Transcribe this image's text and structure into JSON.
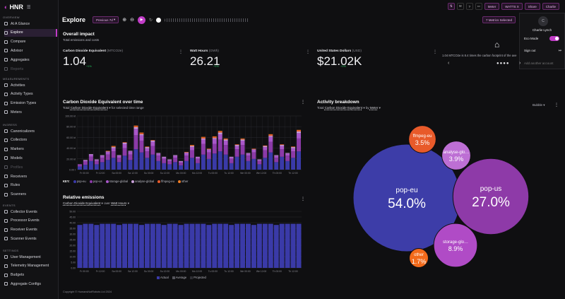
{
  "app": {
    "logo": "HNR"
  },
  "sidebar": {
    "sections": {
      "overview": "OVERVIEW",
      "measurements": "MEASUREMENTS",
      "ingress": "INGRESS",
      "events": "EVENTS",
      "settings": "SETTINGS"
    },
    "overview": [
      {
        "label": "At A Glance"
      },
      {
        "label": "Explore"
      },
      {
        "label": "Compare"
      },
      {
        "label": "Advisor"
      },
      {
        "label": "Aggregates"
      },
      {
        "label": "Reports"
      }
    ],
    "measurements": [
      {
        "label": "Activities"
      },
      {
        "label": "Activity Types"
      },
      {
        "label": "Emission Types"
      },
      {
        "label": "Meters"
      }
    ],
    "ingress": [
      {
        "label": "Canonicalizers"
      },
      {
        "label": "Collectors"
      },
      {
        "label": "Markers"
      },
      {
        "label": "Models"
      },
      {
        "label": "Profiles"
      },
      {
        "label": "Receivers"
      },
      {
        "label": "Rules"
      },
      {
        "label": "Scanners"
      }
    ],
    "events": [
      {
        "label": "Collector Events"
      },
      {
        "label": "Processor Events"
      },
      {
        "label": "Receiver Events"
      },
      {
        "label": "Scanner Events"
      }
    ],
    "settings": [
      {
        "label": "User Management"
      },
      {
        "label": "Telemetry Management"
      },
      {
        "label": "Budgets"
      },
      {
        "label": "Aggregate Configs"
      }
    ]
  },
  "topbar": {
    "meter": "Meter",
    "wattsx": "WATTS X",
    "share": "Share",
    "user": "Charlie"
  },
  "toolbar": {
    "title": "Explore",
    "range": "Previous 7d",
    "play_icon": "▶",
    "metrics_button": "7 Metrics Selected"
  },
  "user_menu": {
    "name": "Charlie Lynch",
    "avatar": "C",
    "eco_mode": "Eco Mode",
    "sign_out": "Sign out",
    "add_account": "Add another account"
  },
  "overall": {
    "title": "Overall impact",
    "subtitle": "Total emissions and costs",
    "kpis": [
      {
        "label": "Carbon Dioxide Equivalent",
        "unit": "(MTCO2e)",
        "value": "1.04",
        "delta": "+1%"
      },
      {
        "label": "Watt Hours",
        "unit": "(GWh)",
        "value": "26.21",
        "delta": "+1%"
      },
      {
        "label": "United States Dollars",
        "unit": "(USD)",
        "value": "$21.02K",
        "delta": "+1%"
      }
    ],
    "insight": "1.04 MTCO2e is 8.4 times the carbon footprint of the ave"
  },
  "co2_chart": {
    "title": "Carbon Dioxide Equivalent over time",
    "sub_prefix": "Total",
    "sub_metric": "Carbon Dioxide Equivalent",
    "sub_suffix": "for selected time range",
    "key_label": "KEY:",
    "y_ticks": [
      "0.00 t",
      "20.00 kt",
      "40.00 kt",
      "60.00 kt",
      "80.00 kt",
      "100.00 kt"
    ],
    "x_ticks": [
      "Fr 00:00",
      "Fr 12:00",
      "Sa 00:00",
      "Sa 12:00",
      "Su 00:00",
      "Su 12:00",
      "Mo 00:00",
      "Mo 12:00",
      "Tu 00:00",
      "Tu 12:00",
      "We 00:00",
      "We 12:00",
      "Th 00:00",
      "Th 12:00"
    ]
  },
  "activity": {
    "title": "Activity breakdown",
    "sub_prefix": "Total",
    "sub_metric": "Carbon Dioxide Equivalent",
    "sub_mid": "by",
    "sub_group": "Meter",
    "mode": "Bubble"
  },
  "relative": {
    "title": "Relative emissions",
    "sub_metric": "Carbon Dioxide Equivalent",
    "sub_mid": "over",
    "sub_base": "Watt Hours",
    "y_ticks": [
      "0.00",
      "5.00",
      "10.00",
      "15.00",
      "20.00",
      "25.00",
      "30.00",
      "35.00",
      "40.00",
      "45.00",
      "50.00"
    ],
    "x_ticks": [
      "Fr 00:00",
      "Fr 12:00",
      "Sa 00:00",
      "Sa 12:00",
      "Su 00:00",
      "Su 12:00",
      "Mo 00:00",
      "Mo 12:00",
      "Tu 00:00",
      "Tu 12:00",
      "We 00:00",
      "We 12:00",
      "Th 00:00",
      "Th 12:00"
    ],
    "legend": [
      "Actual",
      "Average",
      "Projected"
    ]
  },
  "footer": "Copyright © HumansNotRobots Ltd 2024",
  "chart_data": [
    {
      "type": "bar",
      "stacked": true,
      "title": "Carbon Dioxide Equivalent over time",
      "ylabel": "",
      "ylim": [
        0,
        100000
      ],
      "series": [
        {
          "name": "pop-eu",
          "color": "#3a3aa8",
          "values": [
            6,
            9,
            16,
            10,
            14,
            18,
            22,
            14,
            26,
            18,
            38,
            32,
            22,
            28,
            16,
            12,
            10,
            14,
            8,
            16,
            22,
            12,
            28,
            20,
            30,
            34,
            28,
            12,
            24,
            28,
            16,
            20,
            10,
            22,
            32,
            14,
            24,
            16,
            22,
            34
          ]
        },
        {
          "name": "pop-us",
          "color": "#8b3aa8",
          "values": [
            3,
            6,
            8,
            6,
            8,
            10,
            12,
            8,
            14,
            10,
            26,
            22,
            12,
            16,
            10,
            8,
            6,
            8,
            5,
            10,
            14,
            8,
            20,
            12,
            18,
            22,
            18,
            8,
            14,
            18,
            10,
            12,
            6,
            14,
            20,
            8,
            14,
            10,
            12,
            24
          ]
        },
        {
          "name": "storage-global",
          "color": "#a957c9",
          "values": [
            1,
            2,
            4,
            2,
            4,
            5,
            6,
            4,
            8,
            6,
            12,
            10,
            6,
            8,
            4,
            3,
            2,
            4,
            2,
            5,
            6,
            3,
            8,
            5,
            9,
            10,
            8,
            3,
            6,
            8,
            4,
            5,
            2,
            6,
            9,
            4,
            6,
            4,
            6,
            10
          ]
        },
        {
          "name": "analyse-global",
          "color": "#c8a0d8",
          "values": [
            0,
            1,
            1,
            1,
            1,
            1,
            2,
            1,
            2,
            1,
            3,
            2,
            2,
            2,
            1,
            1,
            1,
            1,
            1,
            1,
            2,
            1,
            2,
            1,
            2,
            3,
            2,
            1,
            2,
            2,
            1,
            1,
            1,
            2,
            2,
            1,
            2,
            1,
            2,
            3
          ]
        },
        {
          "name": "ffmpeg-eu",
          "color": "#e85a2a",
          "values": [
            0,
            0,
            0,
            0,
            0,
            1,
            1,
            0,
            1,
            0,
            2,
            2,
            1,
            1,
            0,
            0,
            0,
            0,
            0,
            1,
            1,
            0,
            2,
            1,
            2,
            2,
            1,
            0,
            1,
            1,
            0,
            1,
            0,
            1,
            2,
            0,
            1,
            0,
            1,
            2
          ]
        },
        {
          "name": "other",
          "color": "#f07d24",
          "values": [
            0,
            0,
            0,
            0,
            0,
            0,
            1,
            0,
            0,
            0,
            1,
            1,
            0,
            0,
            0,
            0,
            0,
            0,
            0,
            0,
            1,
            0,
            1,
            0,
            1,
            1,
            1,
            0,
            0,
            1,
            0,
            0,
            0,
            0,
            1,
            0,
            0,
            0,
            0,
            1
          ]
        }
      ]
    },
    {
      "type": "bubble",
      "title": "Activity breakdown",
      "series": [
        {
          "name": "pop-eu",
          "pct": "54.0%",
          "value": 54.0,
          "color": "#3d3da8"
        },
        {
          "name": "pop-us",
          "pct": "27.0%",
          "value": 27.0,
          "color": "#8e3aa8"
        },
        {
          "name": "ffmpeg-eu",
          "pct": "3.5%",
          "value": 3.5,
          "color": "#e85a2a"
        },
        {
          "name": "analyse-glo…",
          "pct": "3.9%",
          "value": 3.9,
          "color": "#bd6fd4"
        },
        {
          "name": "storage-glo…",
          "pct": "8.9%",
          "value": 8.9,
          "color": "#b04bc6"
        },
        {
          "name": "other",
          "pct": "1.7%",
          "value": 1.7,
          "color": "#f26a1b"
        }
      ]
    },
    {
      "type": "bar",
      "title": "Relative emissions",
      "ylim": [
        0,
        50
      ],
      "series": [
        {
          "name": "Actual",
          "color": "#3a3aa8",
          "values": [
            38,
            39,
            39,
            38,
            39,
            39,
            39,
            38,
            39,
            39,
            39,
            38,
            39,
            39,
            39,
            38,
            39,
            39,
            38,
            39,
            39,
            39,
            39,
            38,
            39,
            39,
            39,
            38,
            39,
            39,
            39,
            38,
            39,
            39,
            39,
            38,
            39,
            39,
            39,
            39
          ]
        }
      ]
    }
  ]
}
